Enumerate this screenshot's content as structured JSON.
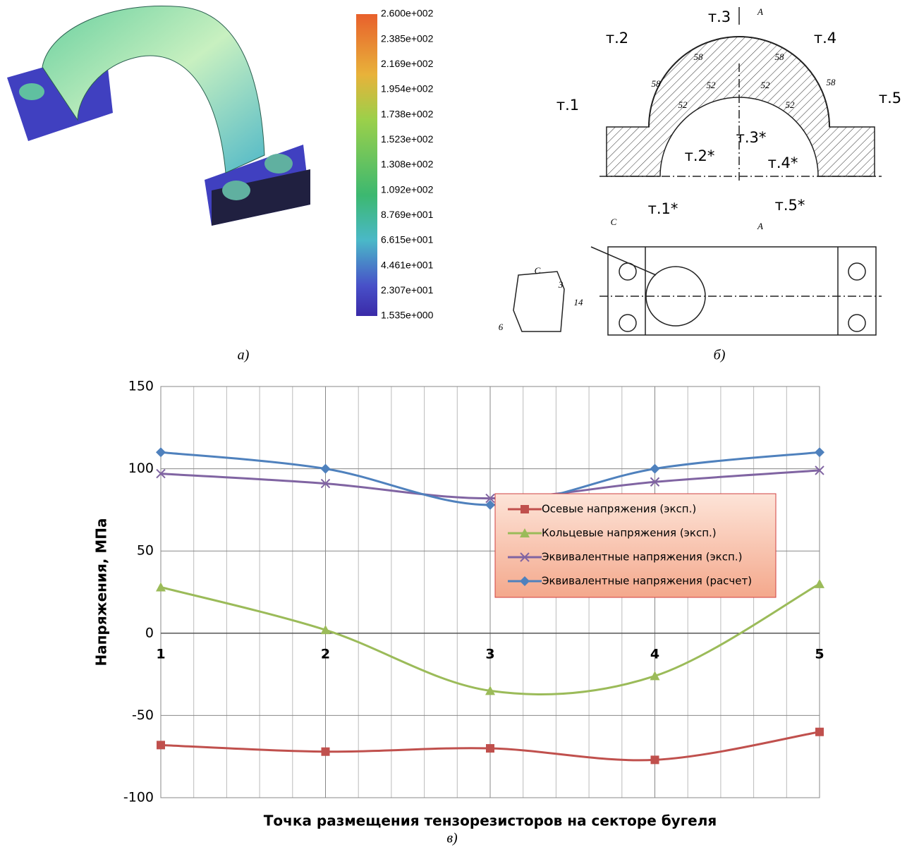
{
  "panel_labels": [
    "а)",
    "б)",
    "в)"
  ],
  "colorbar": {
    "labels": [
      "2.600e+002",
      "2.385e+002",
      "2.169e+002",
      "1.954e+002",
      "1.738e+002",
      "1.523e+002",
      "1.308e+002",
      "1.092e+002",
      "8.769e+001",
      "6.615e+001",
      "4.461e+001",
      "2.307e+001",
      "1.535e+000"
    ]
  },
  "drawing": {
    "points": [
      "т.1",
      "т.2",
      "т.3",
      "т.4",
      "т.5"
    ],
    "points_inner": [
      "т.1*",
      "т.2*",
      "т.3*",
      "т.4*",
      "т.5*"
    ],
    "view": "А",
    "section": "С",
    "dims_outer": [
      "58",
      "58",
      "58",
      "58"
    ],
    "dims_inner": [
      "52",
      "52",
      "52",
      "52"
    ],
    "dims_detail": [
      "3",
      "14",
      "6"
    ]
  },
  "chart_data": {
    "type": "line",
    "x_label": "Точка размещения тензорезисторов на секторе бугеля",
    "y_label": "Напряжения, МПа",
    "categories": [
      "1",
      "2",
      "3",
      "4",
      "5"
    ],
    "series": [
      {
        "name": "Осевые напряжения (эксп.)",
        "color": "#c0504d",
        "marker": "square",
        "values": [
          -68,
          -72,
          -70,
          -77,
          -60
        ]
      },
      {
        "name": "Кольцевые напряжения (эксп.)",
        "color": "#9bbb59",
        "marker": "triangle",
        "values": [
          28,
          2,
          -35,
          -26,
          30
        ]
      },
      {
        "name": "Эквивалентные напряжения (эксп.)",
        "color": "#8064a2",
        "marker": "x",
        "values": [
          97,
          91,
          82,
          92,
          99
        ]
      },
      {
        "name": "Эквивалентные напряжения (расчет)",
        "color": "#4f81bd",
        "marker": "diamond",
        "values": [
          110,
          100,
          78,
          100,
          110
        ]
      }
    ],
    "ylim": [
      -100,
      150
    ],
    "yticks": [
      -100,
      -50,
      0,
      50,
      100,
      150
    ],
    "grid": true,
    "legend": "right"
  }
}
